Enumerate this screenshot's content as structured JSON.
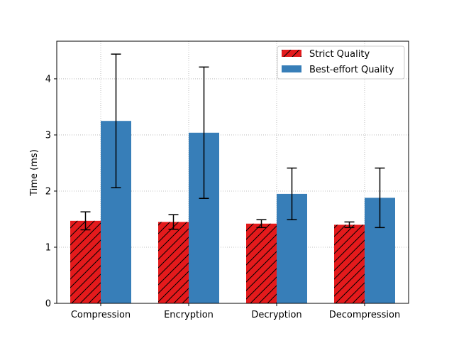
{
  "chart_data": {
    "type": "bar",
    "title": "",
    "xlabel": "",
    "ylabel": "Time (ms)",
    "categories": [
      "Compression",
      "Encryption",
      "Decryption",
      "Decompression"
    ],
    "ylim": [
      0,
      4.67
    ],
    "yticks": [
      0,
      1,
      2,
      3,
      4
    ],
    "grid": true,
    "legend_position": "top-right",
    "series": [
      {
        "name": "Strict Quality",
        "color": "#e41a1c",
        "hatch": "diagonal",
        "values": [
          1.47,
          1.45,
          1.42,
          1.4
        ],
        "errors": [
          0.16,
          0.13,
          0.07,
          0.05
        ]
      },
      {
        "name": "Best-effort Quality",
        "color": "#377eb8",
        "hatch": "none",
        "values": [
          3.25,
          3.04,
          1.95,
          1.88
        ],
        "errors": [
          1.19,
          1.17,
          0.46,
          0.53
        ]
      }
    ]
  }
}
